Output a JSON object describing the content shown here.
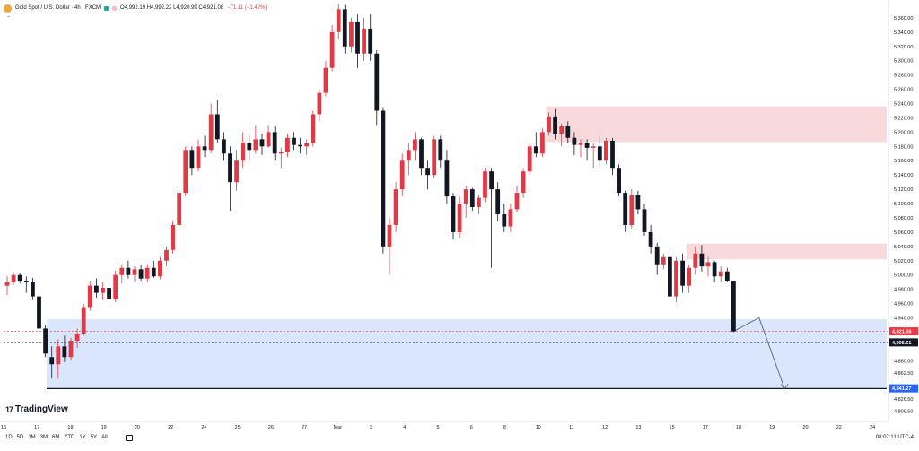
{
  "header": {
    "symbol": "Gold Spot / U.S. Dollar · 4h · FXCM",
    "ohlc": "O4,992.19 H4,992.22 L4,920.99 C4,921.08",
    "change": "−71.11 (−1.42%)"
  },
  "watermark": "TradingView",
  "chart_data": {
    "type": "candlestick",
    "title": "Gold Spot / U.S. Dollar · 4h · FXCM",
    "y_range": [
      4800,
      5380
    ],
    "y_ticks": [
      "5,360.00",
      "5,340.00",
      "5,320.00",
      "5,300.00",
      "5,280.00",
      "5,260.00",
      "5,240.00",
      "5,220.00",
      "5,200.00",
      "5,180.00",
      "5,160.00",
      "5,140.00",
      "5,120.00",
      "5,100.00",
      "5,080.00",
      "5,060.00",
      "5,040.00",
      "5,020.00",
      "5,000.00",
      "4,980.00",
      "4,960.00",
      "4,940.00",
      "4,880.00",
      "4,862.50",
      "4,826.50",
      "4,809.50"
    ],
    "x_ticks": [
      "16",
      "17",
      "18",
      "19",
      "20",
      "22",
      "24",
      "25",
      "26",
      "27",
      "Mar",
      "3",
      "4",
      "5",
      "6",
      "8",
      "10",
      "11",
      "12",
      "13",
      "15",
      "17",
      "18",
      "19",
      "20",
      "22",
      "24"
    ],
    "price_labels": [
      {
        "text": "4,921.08",
        "value": 4921.08,
        "color": "#f23645"
      },
      {
        "text": "4,905.61",
        "value": 4905.61,
        "color": "#131722"
      },
      {
        "text": "4,841.27",
        "value": 4841.27,
        "color": "#2962ff"
      }
    ],
    "zones": [
      {
        "kind": "supply",
        "y_top": 5236,
        "y_bottom": 5186,
        "color": "#f7d4d6"
      },
      {
        "kind": "supply",
        "y_top": 5044,
        "y_bottom": 5022,
        "color": "#f7d4d6"
      },
      {
        "kind": "demand",
        "y_top": 4938,
        "y_bottom": 4841,
        "color": "#d2e2fb"
      }
    ],
    "candles": [
      {
        "o": 4985,
        "h": 4998,
        "l": 4972,
        "c": 4990
      },
      {
        "o": 4990,
        "h": 5004,
        "l": 4986,
        "c": 5000
      },
      {
        "o": 5000,
        "h": 5002,
        "l": 4988,
        "c": 4992
      },
      {
        "o": 4992,
        "h": 4998,
        "l": 4975,
        "c": 4990
      },
      {
        "o": 4990,
        "h": 4996,
        "l": 4965,
        "c": 4970
      },
      {
        "o": 4970,
        "h": 4972,
        "l": 4920,
        "c": 4925
      },
      {
        "o": 4925,
        "h": 4930,
        "l": 4885,
        "c": 4890
      },
      {
        "o": 4885,
        "h": 4900,
        "l": 4855,
        "c": 4875
      },
      {
        "o": 4875,
        "h": 4910,
        "l": 4855,
        "c": 4900
      },
      {
        "o": 4900,
        "h": 4915,
        "l": 4878,
        "c": 4885
      },
      {
        "o": 4885,
        "h": 4912,
        "l": 4880,
        "c": 4908
      },
      {
        "o": 4908,
        "h": 4925,
        "l": 4898,
        "c": 4918
      },
      {
        "o": 4918,
        "h": 4960,
        "l": 4915,
        "c": 4955
      },
      {
        "o": 4955,
        "h": 4992,
        "l": 4950,
        "c": 4985
      },
      {
        "o": 4985,
        "h": 4995,
        "l": 4968,
        "c": 4975
      },
      {
        "o": 4975,
        "h": 4990,
        "l": 4965,
        "c": 4982
      },
      {
        "o": 4982,
        "h": 4986,
        "l": 4960,
        "c": 4966
      },
      {
        "o": 4966,
        "h": 5006,
        "l": 4962,
        "c": 5000
      },
      {
        "o": 5000,
        "h": 5015,
        "l": 4988,
        "c": 5010
      },
      {
        "o": 5010,
        "h": 5020,
        "l": 4995,
        "c": 5000
      },
      {
        "o": 5000,
        "h": 5012,
        "l": 4990,
        "c": 5008
      },
      {
        "o": 5008,
        "h": 5014,
        "l": 4992,
        "c": 4995
      },
      {
        "o": 4995,
        "h": 5015,
        "l": 4990,
        "c": 5010
      },
      {
        "o": 5010,
        "h": 5020,
        "l": 4996,
        "c": 4998
      },
      {
        "o": 4998,
        "h": 5025,
        "l": 4994,
        "c": 5020
      },
      {
        "o": 5020,
        "h": 5040,
        "l": 5012,
        "c": 5035
      },
      {
        "o": 5035,
        "h": 5075,
        "l": 5030,
        "c": 5070
      },
      {
        "o": 5070,
        "h": 5120,
        "l": 5065,
        "c": 5115
      },
      {
        "o": 5115,
        "h": 5180,
        "l": 5110,
        "c": 5175
      },
      {
        "o": 5175,
        "h": 5180,
        "l": 5140,
        "c": 5150
      },
      {
        "o": 5150,
        "h": 5190,
        "l": 5145,
        "c": 5180
      },
      {
        "o": 5180,
        "h": 5195,
        "l": 5165,
        "c": 5175
      },
      {
        "o": 5175,
        "h": 5240,
        "l": 5170,
        "c": 5225
      },
      {
        "o": 5225,
        "h": 5245,
        "l": 5185,
        "c": 5190
      },
      {
        "o": 5190,
        "h": 5200,
        "l": 5160,
        "c": 5170
      },
      {
        "o": 5170,
        "h": 5180,
        "l": 5090,
        "c": 5130
      },
      {
        "o": 5130,
        "h": 5175,
        "l": 5118,
        "c": 5160
      },
      {
        "o": 5160,
        "h": 5200,
        "l": 5150,
        "c": 5185
      },
      {
        "o": 5185,
        "h": 5196,
        "l": 5160,
        "c": 5175
      },
      {
        "o": 5175,
        "h": 5210,
        "l": 5170,
        "c": 5190
      },
      {
        "o": 5190,
        "h": 5198,
        "l": 5168,
        "c": 5180
      },
      {
        "o": 5180,
        "h": 5210,
        "l": 5178,
        "c": 5200
      },
      {
        "o": 5200,
        "h": 5208,
        "l": 5160,
        "c": 5170
      },
      {
        "o": 5170,
        "h": 5178,
        "l": 5150,
        "c": 5172
      },
      {
        "o": 5172,
        "h": 5198,
        "l": 5165,
        "c": 5192
      },
      {
        "o": 5192,
        "h": 5200,
        "l": 5175,
        "c": 5182
      },
      {
        "o": 5182,
        "h": 5192,
        "l": 5170,
        "c": 5180
      },
      {
        "o": 5180,
        "h": 5190,
        "l": 5168,
        "c": 5185
      },
      {
        "o": 5185,
        "h": 5230,
        "l": 5180,
        "c": 5225
      },
      {
        "o": 5225,
        "h": 5260,
        "l": 5215,
        "c": 5255
      },
      {
        "o": 5255,
        "h": 5300,
        "l": 5250,
        "c": 5290
      },
      {
        "o": 5290,
        "h": 5350,
        "l": 5285,
        "c": 5340
      },
      {
        "o": 5340,
        "h": 5380,
        "l": 5330,
        "c": 5372
      },
      {
        "o": 5372,
        "h": 5378,
        "l": 5310,
        "c": 5320
      },
      {
        "o": 5320,
        "h": 5360,
        "l": 5312,
        "c": 5355
      },
      {
        "o": 5355,
        "h": 5365,
        "l": 5290,
        "c": 5310
      },
      {
        "o": 5310,
        "h": 5360,
        "l": 5300,
        "c": 5345
      },
      {
        "o": 5345,
        "h": 5365,
        "l": 5300,
        "c": 5310
      },
      {
        "o": 5310,
        "h": 5315,
        "l": 5210,
        "c": 5230
      },
      {
        "o": 5230,
        "h": 5235,
        "l": 5030,
        "c": 5040
      },
      {
        "o": 5040,
        "h": 5080,
        "l": 5000,
        "c": 5070
      },
      {
        "o": 5070,
        "h": 5130,
        "l": 5060,
        "c": 5120
      },
      {
        "o": 5120,
        "h": 5170,
        "l": 5110,
        "c": 5160
      },
      {
        "o": 5160,
        "h": 5185,
        "l": 5140,
        "c": 5175
      },
      {
        "o": 5175,
        "h": 5200,
        "l": 5160,
        "c": 5190
      },
      {
        "o": 5190,
        "h": 5192,
        "l": 5140,
        "c": 5150
      },
      {
        "o": 5150,
        "h": 5160,
        "l": 5120,
        "c": 5140
      },
      {
        "o": 5140,
        "h": 5195,
        "l": 5135,
        "c": 5190
      },
      {
        "o": 5190,
        "h": 5195,
        "l": 5150,
        "c": 5160
      },
      {
        "o": 5160,
        "h": 5175,
        "l": 5100,
        "c": 5110
      },
      {
        "o": 5110,
        "h": 5115,
        "l": 5050,
        "c": 5060
      },
      {
        "o": 5060,
        "h": 5110,
        "l": 5052,
        "c": 5100
      },
      {
        "o": 5100,
        "h": 5125,
        "l": 5080,
        "c": 5120
      },
      {
        "o": 5120,
        "h": 5122,
        "l": 5090,
        "c": 5095
      },
      {
        "o": 5095,
        "h": 5112,
        "l": 5085,
        "c": 5108
      },
      {
        "o": 5108,
        "h": 5150,
        "l": 5102,
        "c": 5145
      },
      {
        "o": 5145,
        "h": 5150,
        "l": 5010,
        "c": 5120
      },
      {
        "o": 5120,
        "h": 5130,
        "l": 5075,
        "c": 5085
      },
      {
        "o": 5085,
        "h": 5100,
        "l": 5060,
        "c": 5068
      },
      {
        "o": 5068,
        "h": 5100,
        "l": 5060,
        "c": 5092
      },
      {
        "o": 5092,
        "h": 5125,
        "l": 5088,
        "c": 5115
      },
      {
        "o": 5115,
        "h": 5150,
        "l": 5108,
        "c": 5145
      },
      {
        "o": 5145,
        "h": 5185,
        "l": 5140,
        "c": 5180
      },
      {
        "o": 5180,
        "h": 5200,
        "l": 5165,
        "c": 5170
      },
      {
        "o": 5170,
        "h": 5205,
        "l": 5165,
        "c": 5200
      },
      {
        "o": 5200,
        "h": 5228,
        "l": 5195,
        "c": 5222
      },
      {
        "o": 5222,
        "h": 5232,
        "l": 5190,
        "c": 5198
      },
      {
        "o": 5198,
        "h": 5212,
        "l": 5180,
        "c": 5208
      },
      {
        "o": 5208,
        "h": 5215,
        "l": 5185,
        "c": 5192
      },
      {
        "o": 5192,
        "h": 5200,
        "l": 5168,
        "c": 5182
      },
      {
        "o": 5182,
        "h": 5190,
        "l": 5165,
        "c": 5185
      },
      {
        "o": 5185,
        "h": 5190,
        "l": 5160,
        "c": 5178
      },
      {
        "o": 5178,
        "h": 5185,
        "l": 5150,
        "c": 5180
      },
      {
        "o": 5180,
        "h": 5195,
        "l": 5150,
        "c": 5160
      },
      {
        "o": 5160,
        "h": 5192,
        "l": 5155,
        "c": 5188
      },
      {
        "o": 5188,
        "h": 5192,
        "l": 5140,
        "c": 5150
      },
      {
        "o": 5150,
        "h": 5155,
        "l": 5110,
        "c": 5115
      },
      {
        "o": 5115,
        "h": 5118,
        "l": 5060,
        "c": 5070
      },
      {
        "o": 5070,
        "h": 5120,
        "l": 5065,
        "c": 5112
      },
      {
        "o": 5112,
        "h": 5118,
        "l": 5085,
        "c": 5092
      },
      {
        "o": 5092,
        "h": 5100,
        "l": 5055,
        "c": 5060
      },
      {
        "o": 5060,
        "h": 5070,
        "l": 5030,
        "c": 5040
      },
      {
        "o": 5040,
        "h": 5045,
        "l": 5000,
        "c": 5015
      },
      {
        "o": 5015,
        "h": 5030,
        "l": 5008,
        "c": 5025
      },
      {
        "o": 5025,
        "h": 5040,
        "l": 4965,
        "c": 4970
      },
      {
        "o": 4970,
        "h": 5025,
        "l": 4962,
        "c": 5020
      },
      {
        "o": 5020,
        "h": 5030,
        "l": 4975,
        "c": 4985
      },
      {
        "o": 4985,
        "h": 5015,
        "l": 4975,
        "c": 5010
      },
      {
        "o": 5010,
        "h": 5040,
        "l": 5000,
        "c": 5030
      },
      {
        "o": 5030,
        "h": 5042,
        "l": 5005,
        "c": 5012
      },
      {
        "o": 5012,
        "h": 5025,
        "l": 4998,
        "c": 5018
      },
      {
        "o": 5018,
        "h": 5020,
        "l": 4990,
        "c": 4998
      },
      {
        "o": 4998,
        "h": 5012,
        "l": 4990,
        "c": 5005
      },
      {
        "o": 5005,
        "h": 5010,
        "l": 4990,
        "c": 4992
      },
      {
        "o": 4992,
        "h": 4992,
        "l": 4920,
        "c": 4921
      }
    ],
    "projection": [
      {
        "i": 114,
        "y": 4921
      },
      {
        "i": 118,
        "y": 4940
      },
      {
        "i": 122,
        "y": 4841
      }
    ]
  },
  "footer": {
    "timeframes": [
      "1D",
      "5D",
      "1M",
      "3M",
      "6M",
      "YTD",
      "1Y",
      "5Y",
      "All"
    ],
    "clock": "08:07:11 UTC-4"
  }
}
